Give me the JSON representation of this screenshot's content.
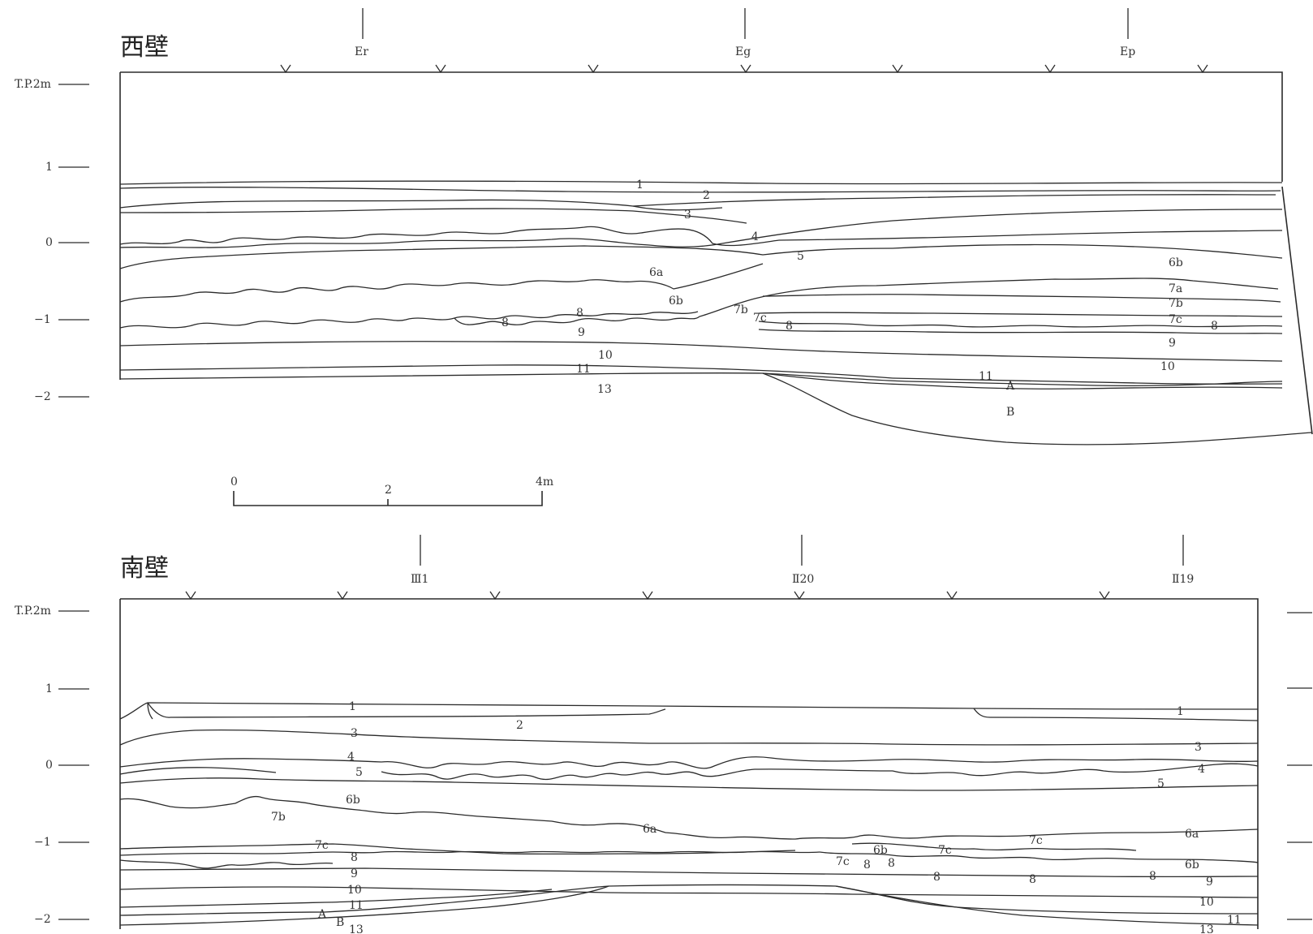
{
  "west": {
    "title": "西壁",
    "elevation_labels": [
      "T.P.2m",
      "1",
      "0",
      "−1",
      "−2"
    ],
    "markers": [
      "Er",
      "Eg",
      "Ep"
    ],
    "layer_labels": [
      "1",
      "2",
      "3",
      "4",
      "5",
      "6a",
      "6b",
      "6b",
      "7a",
      "7b",
      "7b",
      "7c",
      "7c",
      "8",
      "8",
      "8",
      "8",
      "9",
      "9",
      "10",
      "10",
      "11",
      "11",
      "13",
      "A",
      "B"
    ]
  },
  "scale_bar": {
    "ticks": [
      "0",
      "2",
      "4m"
    ]
  },
  "south": {
    "title": "南壁",
    "elevation_labels": [
      "T.P.2m",
      "1",
      "0",
      "−1",
      "−2"
    ],
    "markers": [
      "Ⅲ1",
      "Ⅱ20",
      "Ⅱ19"
    ],
    "layer_labels": [
      "1",
      "1",
      "2",
      "3",
      "3",
      "4",
      "4",
      "5",
      "5",
      "6a",
      "6a",
      "6b",
      "6b",
      "6b",
      "7b",
      "7c",
      "7c",
      "7c",
      "7c",
      "8",
      "8",
      "8",
      "8",
      "8",
      "8",
      "9",
      "9",
      "10",
      "10",
      "11",
      "11",
      "13",
      "13",
      "A",
      "B"
    ]
  }
}
